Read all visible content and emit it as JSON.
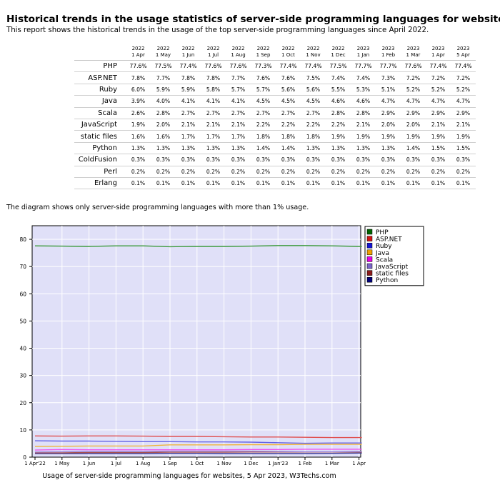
{
  "header": {
    "title": "Historical trends in the usage statistics of server-side programming languages for websites",
    "subtitle": "This report shows the historical trends in the usage of the top server-side programming languages since April 2022."
  },
  "table": {
    "columns": [
      {
        "year": "2022",
        "date": "1 Apr"
      },
      {
        "year": "2022",
        "date": "1 May"
      },
      {
        "year": "2022",
        "date": "1 Jun"
      },
      {
        "year": "2022",
        "date": "1 Jul"
      },
      {
        "year": "2022",
        "date": "1 Aug"
      },
      {
        "year": "2022",
        "date": "1 Sep"
      },
      {
        "year": "2022",
        "date": "1 Oct"
      },
      {
        "year": "2022",
        "date": "1 Nov"
      },
      {
        "year": "2022",
        "date": "1 Dec"
      },
      {
        "year": "2023",
        "date": "1 Jan"
      },
      {
        "year": "2023",
        "date": "1 Feb"
      },
      {
        "year": "2023",
        "date": "1 Mar"
      },
      {
        "year": "2023",
        "date": "1 Apr"
      },
      {
        "year": "2023",
        "date": "5 Apr"
      }
    ],
    "rows": [
      {
        "lang": "PHP",
        "values": [
          "77.6%",
          "77.5%",
          "77.4%",
          "77.6%",
          "77.6%",
          "77.3%",
          "77.4%",
          "77.4%",
          "77.5%",
          "77.7%",
          "77.7%",
          "77.6%",
          "77.4%",
          "77.4%"
        ]
      },
      {
        "lang": "ASP.NET",
        "values": [
          "7.8%",
          "7.7%",
          "7.8%",
          "7.8%",
          "7.7%",
          "7.6%",
          "7.6%",
          "7.5%",
          "7.4%",
          "7.4%",
          "7.3%",
          "7.2%",
          "7.2%",
          "7.2%"
        ]
      },
      {
        "lang": "Ruby",
        "values": [
          "6.0%",
          "5.9%",
          "5.9%",
          "5.8%",
          "5.7%",
          "5.7%",
          "5.6%",
          "5.6%",
          "5.5%",
          "5.3%",
          "5.1%",
          "5.2%",
          "5.2%",
          "5.2%"
        ]
      },
      {
        "lang": "Java",
        "values": [
          "3.9%",
          "4.0%",
          "4.1%",
          "4.1%",
          "4.1%",
          "4.5%",
          "4.5%",
          "4.5%",
          "4.6%",
          "4.6%",
          "4.7%",
          "4.7%",
          "4.7%",
          "4.7%"
        ]
      },
      {
        "lang": "Scala",
        "values": [
          "2.6%",
          "2.8%",
          "2.7%",
          "2.7%",
          "2.7%",
          "2.7%",
          "2.7%",
          "2.7%",
          "2.8%",
          "2.8%",
          "2.9%",
          "2.9%",
          "2.9%",
          "2.9%"
        ]
      },
      {
        "lang": "JavaScript",
        "values": [
          "1.9%",
          "2.0%",
          "2.1%",
          "2.1%",
          "2.1%",
          "2.2%",
          "2.2%",
          "2.2%",
          "2.2%",
          "2.1%",
          "2.0%",
          "2.0%",
          "2.1%",
          "2.1%"
        ]
      },
      {
        "lang": "static files",
        "values": [
          "1.6%",
          "1.6%",
          "1.7%",
          "1.7%",
          "1.7%",
          "1.8%",
          "1.8%",
          "1.8%",
          "1.9%",
          "1.9%",
          "1.9%",
          "1.9%",
          "1.9%",
          "1.9%"
        ]
      },
      {
        "lang": "Python",
        "values": [
          "1.3%",
          "1.3%",
          "1.3%",
          "1.3%",
          "1.3%",
          "1.4%",
          "1.4%",
          "1.3%",
          "1.3%",
          "1.3%",
          "1.3%",
          "1.4%",
          "1.5%",
          "1.5%"
        ]
      },
      {
        "lang": "ColdFusion",
        "values": [
          "0.3%",
          "0.3%",
          "0.3%",
          "0.3%",
          "0.3%",
          "0.3%",
          "0.3%",
          "0.3%",
          "0.3%",
          "0.3%",
          "0.3%",
          "0.3%",
          "0.3%",
          "0.3%"
        ]
      },
      {
        "lang": "Perl",
        "values": [
          "0.2%",
          "0.2%",
          "0.2%",
          "0.2%",
          "0.2%",
          "0.2%",
          "0.2%",
          "0.2%",
          "0.2%",
          "0.2%",
          "0.2%",
          "0.2%",
          "0.2%",
          "0.2%"
        ]
      },
      {
        "lang": "Erlang",
        "values": [
          "0.1%",
          "0.1%",
          "0.1%",
          "0.1%",
          "0.1%",
          "0.1%",
          "0.1%",
          "0.1%",
          "0.1%",
          "0.1%",
          "0.1%",
          "0.1%",
          "0.1%",
          "0.1%"
        ]
      }
    ]
  },
  "note": "The diagram shows only server-side programming languages with more than 1% usage.",
  "caption": "Usage of server-side programming languages for websites, 5 Apr 2023, W3Techs.com",
  "chart_data": {
    "type": "line",
    "x": [
      "1 Apr'22",
      "1 May",
      "1 Jun",
      "1 Jul",
      "1 Aug",
      "1 Sep",
      "1 Oct",
      "1 Nov",
      "1 Dec",
      "1 Jan'23",
      "1 Feb",
      "1 Mar",
      "1 Apr",
      "5 Apr"
    ],
    "x_tick_labels": [
      "1 Apr'22",
      "1 May",
      "1 Jun",
      "1 Jul",
      "1 Aug",
      "1 Sep",
      "1 Oct",
      "1 Nov",
      "1 Dec",
      "1 Jan'23",
      "1 Feb",
      "1 Mar",
      "1 Apr"
    ],
    "ylim": [
      0,
      85
    ],
    "yticks": [
      0,
      10,
      20,
      30,
      40,
      50,
      60,
      70,
      80
    ],
    "grid": true,
    "legend_position": "right",
    "plot_background": "#e0e0f8",
    "series": [
      {
        "name": "PHP",
        "color": "#006400",
        "line_color": "#3c9a3c",
        "values": [
          77.6,
          77.5,
          77.4,
          77.6,
          77.6,
          77.3,
          77.4,
          77.4,
          77.5,
          77.7,
          77.7,
          77.6,
          77.4,
          77.4
        ]
      },
      {
        "name": "ASP.NET",
        "color": "#d21414",
        "line_color": "#e05050",
        "values": [
          7.8,
          7.7,
          7.8,
          7.8,
          7.7,
          7.6,
          7.6,
          7.5,
          7.4,
          7.4,
          7.3,
          7.2,
          7.2,
          7.2
        ]
      },
      {
        "name": "Ruby",
        "color": "#1414d2",
        "line_color": "#6464e6",
        "values": [
          6.0,
          5.9,
          5.9,
          5.8,
          5.7,
          5.7,
          5.6,
          5.6,
          5.5,
          5.3,
          5.1,
          5.2,
          5.2,
          5.2
        ]
      },
      {
        "name": "Java",
        "color": "#f0a000",
        "line_color": "#f0b43c",
        "values": [
          3.9,
          4.0,
          4.1,
          4.1,
          4.1,
          4.5,
          4.5,
          4.5,
          4.6,
          4.6,
          4.7,
          4.7,
          4.7,
          4.7
        ]
      },
      {
        "name": "Scala",
        "color": "#e600e6",
        "line_color": "#ee55ee",
        "values": [
          2.6,
          2.8,
          2.7,
          2.7,
          2.7,
          2.7,
          2.7,
          2.7,
          2.8,
          2.8,
          2.9,
          2.9,
          2.9,
          2.9
        ]
      },
      {
        "name": "JavaScript",
        "color": "#7a66c8",
        "line_color": "#9a88dc",
        "values": [
          1.9,
          2.0,
          2.1,
          2.1,
          2.1,
          2.2,
          2.2,
          2.2,
          2.2,
          2.1,
          2.0,
          2.0,
          2.1,
          2.1
        ]
      },
      {
        "name": "static files",
        "color": "#8b1a1a",
        "line_color": "#a85050",
        "values": [
          1.6,
          1.6,
          1.7,
          1.7,
          1.7,
          1.8,
          1.8,
          1.8,
          1.9,
          1.9,
          1.9,
          1.9,
          1.9,
          1.9
        ]
      },
      {
        "name": "Python",
        "color": "#000078",
        "line_color": "#3a3a9a",
        "values": [
          1.3,
          1.3,
          1.3,
          1.3,
          1.3,
          1.4,
          1.4,
          1.3,
          1.3,
          1.3,
          1.3,
          1.4,
          1.5,
          1.5
        ]
      }
    ]
  }
}
